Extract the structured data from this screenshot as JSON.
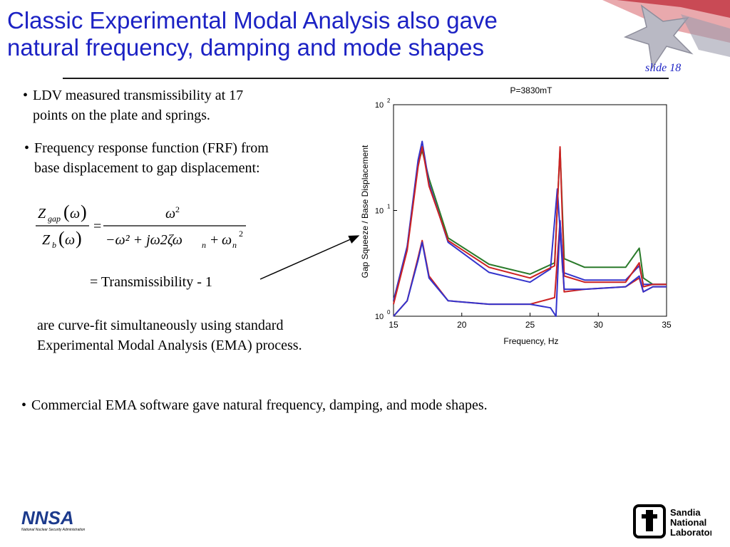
{
  "slide": {
    "title_line1": "Classic Experimental Modal Analysis also gave",
    "title_line2": "natural frequency, damping and mode shapes",
    "number": "slide 18"
  },
  "bullets": [
    {
      "line1": "LDV measured transmissibility at 17",
      "line2": "points on the plate and springs."
    },
    {
      "line1": "Frequency response function (FRF) from",
      "line2": "base displacement to gap displacement:"
    },
    {
      "line1": "Commercial EMA software gave natural frequency, damping, and mode shapes."
    }
  ],
  "equation": {
    "num_Z": "Z",
    "num_sub": "gap",
    "omega": "ω",
    "den_Z": "Z",
    "den_sub": "b",
    "rhs_num": "ω",
    "rhs_den": "−ω² + jω2ζω",
    "equals": "=",
    "transmissibility": "= Transmissibility - 1"
  },
  "paragraph": {
    "line1": "are curve-fit simultaneously using standard",
    "line2": "Experimental Modal Analysis (EMA) process."
  },
  "logos": {
    "nnsa_text": "NNSA",
    "nnsa_caption": "National Nuclear Security Administration",
    "sandia_line1": "Sandia",
    "sandia_line2": "National",
    "sandia_line3": "Laboratories"
  },
  "chart_data": {
    "type": "line",
    "title": "P=3830mT",
    "xlabel": "Frequency, Hz",
    "ylabel": "Gap Squeeze / Base Displacement",
    "xlim": [
      15,
      35
    ],
    "ylim": [
      1,
      100
    ],
    "yscale": "log",
    "xticks": [
      15,
      20,
      25,
      30,
      35
    ],
    "yticks": [
      {
        "base": "10",
        "exp": "0"
      },
      {
        "base": "10",
        "exp": "1"
      },
      {
        "base": "10",
        "exp": "2"
      }
    ],
    "series": [
      {
        "color": "#2a7a2a",
        "x": [
          15,
          16,
          16.8,
          17.1,
          17.6,
          19,
          22,
          25,
          26.8,
          27.2,
          27.5,
          29,
          32,
          33,
          33.3,
          34,
          35
        ],
        "y": [
          1.4,
          4.5,
          28,
          37,
          20,
          5.5,
          3.1,
          2.5,
          3.2,
          38,
          3.5,
          2.9,
          2.9,
          4.4,
          2.3,
          2.0,
          2.0
        ]
      },
      {
        "color": "#3333cc",
        "x": [
          15,
          16,
          16.8,
          17.1,
          17.6,
          19,
          22,
          25,
          26.5,
          27.0,
          27.4,
          29,
          32,
          33,
          33.3,
          34,
          35
        ],
        "y": [
          1.4,
          4.6,
          30,
          45,
          18,
          5.0,
          2.6,
          2.1,
          2.8,
          16,
          2.6,
          2.2,
          2.2,
          3.0,
          2.0,
          2.0,
          2.0
        ]
      },
      {
        "color": "#cc2222",
        "x": [
          15,
          16,
          16.8,
          17.1,
          17.6,
          19,
          22,
          25,
          26.8,
          27.2,
          27.5,
          29,
          32,
          33,
          33.3,
          34,
          35
        ],
        "y": [
          1.3,
          4.2,
          26,
          40,
          17,
          5.2,
          2.9,
          2.3,
          3.0,
          40,
          2.4,
          2.1,
          2.1,
          3.2,
          1.9,
          2.0,
          2.0
        ]
      },
      {
        "color": "#cc2222",
        "x": [
          15,
          16,
          16.8,
          17.1,
          17.6,
          19,
          22,
          25,
          26.8,
          27.2,
          27.5,
          29,
          32,
          33,
          33.3,
          34,
          35
        ],
        "y": [
          1.0,
          1.4,
          3.6,
          5.2,
          2.4,
          1.4,
          1.3,
          1.3,
          1.5,
          8,
          1.7,
          1.8,
          1.9,
          2.3,
          1.7,
          1.9,
          1.9
        ]
      },
      {
        "color": "#3333cc",
        "x": [
          15,
          16,
          16.8,
          17.1,
          17.6,
          19,
          22,
          25,
          26.5,
          26.9,
          27.2,
          27.5,
          29,
          32,
          33,
          33.3,
          34,
          35
        ],
        "y": [
          1.0,
          1.4,
          3.4,
          5.0,
          2.3,
          1.4,
          1.3,
          1.3,
          1.2,
          1.0,
          8,
          1.8,
          1.8,
          1.9,
          2.4,
          1.7,
          1.9,
          1.9
        ]
      }
    ]
  }
}
